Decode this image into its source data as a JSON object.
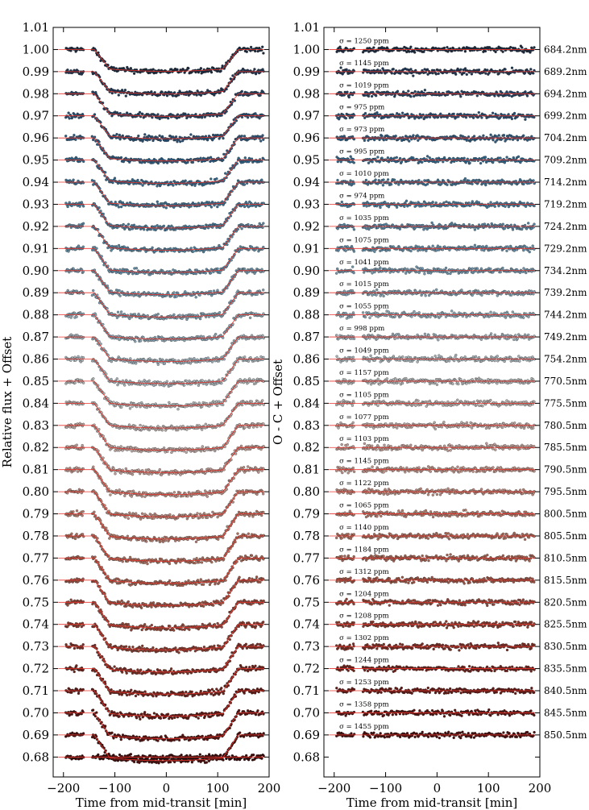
{
  "chart_data": [
    {
      "type": "scatter",
      "panel": "left",
      "title": "",
      "xlabel": "Time from mid-transit [min]",
      "ylabel": "Relative flux + Offset",
      "xlim": [
        -220,
        200
      ],
      "ylim": [
        0.671,
        1.01
      ],
      "xticks": [
        -200,
        -100,
        0,
        100,
        200
      ],
      "xtick_labels": [
        "−200",
        "−100",
        "0",
        "100",
        "200"
      ],
      "yticks": [
        1.01,
        1.0,
        0.99,
        0.98,
        0.97,
        0.96,
        0.95,
        0.94,
        0.93,
        0.92,
        0.91,
        0.9,
        0.89,
        0.88,
        0.87,
        0.86,
        0.85,
        0.84,
        0.83,
        0.82,
        0.81,
        0.8,
        0.79,
        0.78,
        0.77,
        0.76,
        0.75,
        0.74,
        0.73,
        0.72,
        0.71,
        0.7,
        0.69,
        0.68
      ],
      "ytick_labels": [
        "1.01",
        "1.00",
        "0.99",
        "0.98",
        "0.97",
        "0.96",
        "0.95",
        "0.94",
        "0.93",
        "0.92",
        "0.91",
        "0.90",
        "0.89",
        "0.88",
        "0.87",
        "0.86",
        "0.85",
        "0.84",
        "0.83",
        "0.82",
        "0.81",
        "0.80",
        "0.79",
        "0.78",
        "0.77",
        "0.76",
        "0.75",
        "0.74",
        "0.73",
        "0.72",
        "0.71",
        "0.70",
        "0.69",
        "0.68"
      ],
      "model": {
        "ingress_start_min": -140,
        "ingress_end_min": -110,
        "egress_start_min": 110,
        "egress_end_min": 140,
        "data_x_range": [
          -195,
          190
        ],
        "data_gap_min": [
          -160,
          -145
        ]
      },
      "series": [
        {
          "wavelength": "684.2nm",
          "baseline": 1.0,
          "depth": 0.0088,
          "color": "#1a2b40"
        },
        {
          "wavelength": "689.2nm",
          "baseline": 0.99,
          "depth": 0.009,
          "color": "#1e3653"
        },
        {
          "wavelength": "694.2nm",
          "baseline": 0.98,
          "depth": 0.0091,
          "color": "#224263"
        },
        {
          "wavelength": "699.2nm",
          "baseline": 0.97,
          "depth": 0.0092,
          "color": "#274f73"
        },
        {
          "wavelength": "704.2nm",
          "baseline": 0.96,
          "depth": 0.0093,
          "color": "#2d5b80"
        },
        {
          "wavelength": "709.2nm",
          "baseline": 0.95,
          "depth": 0.0094,
          "color": "#34678b"
        },
        {
          "wavelength": "714.2nm",
          "baseline": 0.94,
          "depth": 0.0095,
          "color": "#3d7193"
        },
        {
          "wavelength": "719.2nm",
          "baseline": 0.93,
          "depth": 0.0096,
          "color": "#487a9a"
        },
        {
          "wavelength": "724.2nm",
          "baseline": 0.92,
          "depth": 0.0096,
          "color": "#5483a0"
        },
        {
          "wavelength": "729.2nm",
          "baseline": 0.91,
          "depth": 0.0097,
          "color": "#628ca6"
        },
        {
          "wavelength": "734.2nm",
          "baseline": 0.9,
          "depth": 0.0097,
          "color": "#7095ab"
        },
        {
          "wavelength": "739.2nm",
          "baseline": 0.89,
          "depth": 0.0098,
          "color": "#7e9daf"
        },
        {
          "wavelength": "744.2nm",
          "baseline": 0.88,
          "depth": 0.0098,
          "color": "#8ca5b3"
        },
        {
          "wavelength": "749.2nm",
          "baseline": 0.87,
          "depth": 0.0099,
          "color": "#9aacb6"
        },
        {
          "wavelength": "754.2nm",
          "baseline": 0.86,
          "depth": 0.0099,
          "color": "#a7b2b8"
        },
        {
          "wavelength": "770.5nm",
          "baseline": 0.85,
          "depth": 0.01,
          "color": "#b0b3b4"
        },
        {
          "wavelength": "775.5nm",
          "baseline": 0.84,
          "depth": 0.01,
          "color": "#b7adab"
        },
        {
          "wavelength": "780.5nm",
          "baseline": 0.83,
          "depth": 0.01,
          "color": "#bca6a1"
        },
        {
          "wavelength": "785.5nm",
          "baseline": 0.82,
          "depth": 0.0101,
          "color": "#be9d95"
        },
        {
          "wavelength": "790.5nm",
          "baseline": 0.81,
          "depth": 0.0101,
          "color": "#bd9388"
        },
        {
          "wavelength": "795.5nm",
          "baseline": 0.8,
          "depth": 0.0101,
          "color": "#b9887b"
        },
        {
          "wavelength": "800.5nm",
          "baseline": 0.79,
          "depth": 0.0102,
          "color": "#b47c6d"
        },
        {
          "wavelength": "805.5nm",
          "baseline": 0.78,
          "depth": 0.0102,
          "color": "#ad705f"
        },
        {
          "wavelength": "810.5nm",
          "baseline": 0.77,
          "depth": 0.0102,
          "color": "#a56352"
        },
        {
          "wavelength": "815.5nm",
          "baseline": 0.76,
          "depth": 0.0102,
          "color": "#9c5545"
        },
        {
          "wavelength": "820.5nm",
          "baseline": 0.75,
          "depth": 0.0103,
          "color": "#924739"
        },
        {
          "wavelength": "825.5nm",
          "baseline": 0.74,
          "depth": 0.0103,
          "color": "#873a2d"
        },
        {
          "wavelength": "830.5nm",
          "baseline": 0.73,
          "depth": 0.0103,
          "color": "#7c2d23"
        },
        {
          "wavelength": "835.5nm",
          "baseline": 0.72,
          "depth": 0.0103,
          "color": "#70221a"
        },
        {
          "wavelength": "840.5nm",
          "baseline": 0.71,
          "depth": 0.0103,
          "color": "#631813"
        },
        {
          "wavelength": "845.5nm",
          "baseline": 0.7,
          "depth": 0.0104,
          "color": "#55110e"
        },
        {
          "wavelength": "850.5nm",
          "baseline": 0.69,
          "depth": 0.0104,
          "color": "#470c0a"
        },
        {
          "wavelength": "",
          "baseline": 0.68,
          "depth": 0.0,
          "color": "#3a0807",
          "note": "bottom light curve plotted without residual panel counterpart"
        }
      ]
    },
    {
      "type": "scatter",
      "panel": "right",
      "title": "",
      "xlabel": "Time from mid-transit [min]",
      "ylabel": "O - C + Offset",
      "xlim": [
        -220,
        200
      ],
      "ylim": [
        0.671,
        1.01
      ],
      "xticks": [
        -200,
        -100,
        0,
        100,
        200
      ],
      "xtick_labels": [
        "−200",
        "−100",
        "0",
        "100",
        "200"
      ],
      "yticks": [
        1.01,
        1.0,
        0.99,
        0.98,
        0.97,
        0.96,
        0.95,
        0.94,
        0.93,
        0.92,
        0.91,
        0.9,
        0.89,
        0.88,
        0.87,
        0.86,
        0.85,
        0.84,
        0.83,
        0.82,
        0.81,
        0.8,
        0.79,
        0.78,
        0.77,
        0.76,
        0.75,
        0.74,
        0.73,
        0.72,
        0.71,
        0.7,
        0.69,
        0.68
      ],
      "ytick_labels": [
        "1.01",
        "1.00",
        "0.99",
        "0.98",
        "0.97",
        "0.96",
        "0.95",
        "0.94",
        "0.93",
        "0.92",
        "0.91",
        "0.90",
        "0.89",
        "0.88",
        "0.87",
        "0.86",
        "0.85",
        "0.84",
        "0.83",
        "0.82",
        "0.81",
        "0.80",
        "0.79",
        "0.78",
        "0.77",
        "0.76",
        "0.75",
        "0.74",
        "0.73",
        "0.72",
        "0.71",
        "0.70",
        "0.69",
        "0.68"
      ],
      "series": [
        {
          "wavelength": "684.2nm",
          "baseline": 1.0,
          "sigma_label": "σ = 1250 ppm"
        },
        {
          "wavelength": "689.2nm",
          "baseline": 0.99,
          "sigma_label": "σ = 1145 ppm"
        },
        {
          "wavelength": "694.2nm",
          "baseline": 0.98,
          "sigma_label": "σ = 1019 ppm"
        },
        {
          "wavelength": "699.2nm",
          "baseline": 0.97,
          "sigma_label": "σ = 975 ppm"
        },
        {
          "wavelength": "704.2nm",
          "baseline": 0.96,
          "sigma_label": "σ = 973 ppm"
        },
        {
          "wavelength": "709.2nm",
          "baseline": 0.95,
          "sigma_label": "σ = 995 ppm"
        },
        {
          "wavelength": "714.2nm",
          "baseline": 0.94,
          "sigma_label": "σ = 1010 ppm"
        },
        {
          "wavelength": "719.2nm",
          "baseline": 0.93,
          "sigma_label": "σ = 974 ppm"
        },
        {
          "wavelength": "724.2nm",
          "baseline": 0.92,
          "sigma_label": "σ = 1035 ppm"
        },
        {
          "wavelength": "729.2nm",
          "baseline": 0.91,
          "sigma_label": "σ = 1075 ppm"
        },
        {
          "wavelength": "734.2nm",
          "baseline": 0.9,
          "sigma_label": "σ = 1041 ppm"
        },
        {
          "wavelength": "739.2nm",
          "baseline": 0.89,
          "sigma_label": "σ = 1015 ppm"
        },
        {
          "wavelength": "744.2nm",
          "baseline": 0.88,
          "sigma_label": "σ = 1055 ppm"
        },
        {
          "wavelength": "749.2nm",
          "baseline": 0.87,
          "sigma_label": "σ = 998 ppm"
        },
        {
          "wavelength": "754.2nm",
          "baseline": 0.86,
          "sigma_label": "σ = 1049 ppm"
        },
        {
          "wavelength": "770.5nm",
          "baseline": 0.85,
          "sigma_label": "σ = 1157 ppm"
        },
        {
          "wavelength": "775.5nm",
          "baseline": 0.84,
          "sigma_label": "σ = 1105 ppm"
        },
        {
          "wavelength": "780.5nm",
          "baseline": 0.83,
          "sigma_label": "σ = 1077 ppm"
        },
        {
          "wavelength": "785.5nm",
          "baseline": 0.82,
          "sigma_label": "σ = 1103 ppm"
        },
        {
          "wavelength": "790.5nm",
          "baseline": 0.81,
          "sigma_label": "σ = 1145 ppm"
        },
        {
          "wavelength": "795.5nm",
          "baseline": 0.8,
          "sigma_label": "σ = 1122 ppm"
        },
        {
          "wavelength": "800.5nm",
          "baseline": 0.79,
          "sigma_label": "σ = 1065 ppm"
        },
        {
          "wavelength": "805.5nm",
          "baseline": 0.78,
          "sigma_label": "σ = 1140 ppm"
        },
        {
          "wavelength": "810.5nm",
          "baseline": 0.77,
          "sigma_label": "σ = 1184 ppm"
        },
        {
          "wavelength": "815.5nm",
          "baseline": 0.76,
          "sigma_label": "σ = 1312 ppm"
        },
        {
          "wavelength": "820.5nm",
          "baseline": 0.75,
          "sigma_label": "σ = 1204 ppm"
        },
        {
          "wavelength": "825.5nm",
          "baseline": 0.74,
          "sigma_label": "σ = 1208 ppm"
        },
        {
          "wavelength": "830.5nm",
          "baseline": 0.73,
          "sigma_label": "σ = 1302 ppm"
        },
        {
          "wavelength": "835.5nm",
          "baseline": 0.72,
          "sigma_label": "σ = 1244 ppm"
        },
        {
          "wavelength": "840.5nm",
          "baseline": 0.71,
          "sigma_label": "σ = 1253 ppm"
        },
        {
          "wavelength": "845.5nm",
          "baseline": 0.7,
          "sigma_label": "σ = 1358 ppm"
        },
        {
          "wavelength": "850.5nm",
          "baseline": 0.69,
          "sigma_label": "σ = 1455 ppm"
        }
      ]
    }
  ],
  "colors": {
    "model_line": "#e8322a",
    "residual_zero_line": "#e8322a",
    "point_edge": "#202020"
  }
}
